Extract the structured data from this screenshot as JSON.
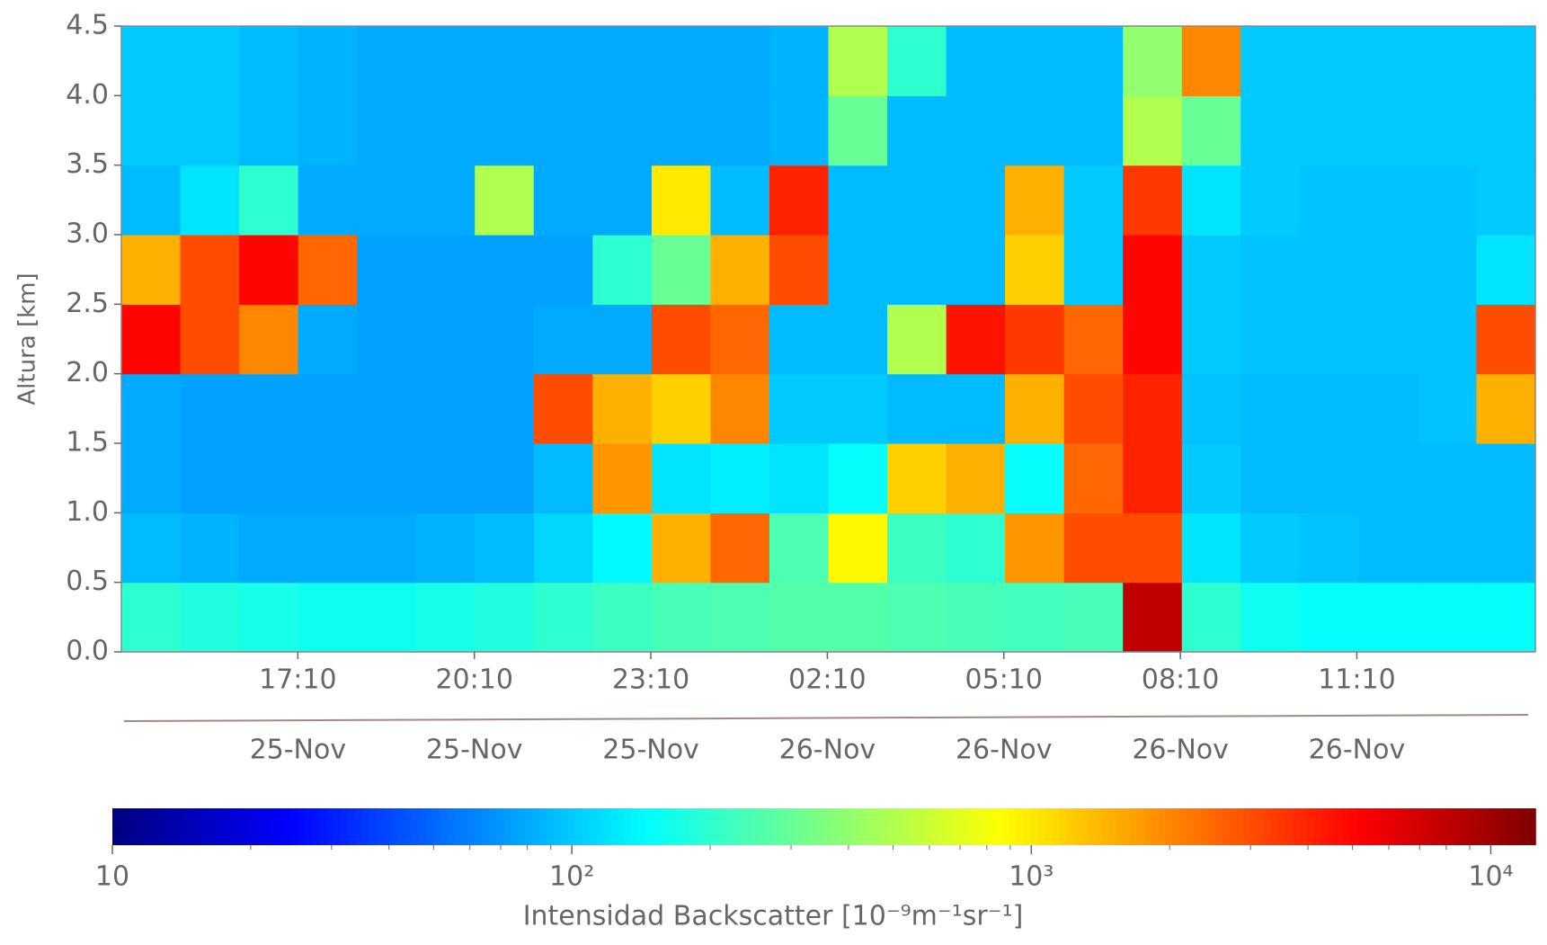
{
  "chart_data": {
    "type": "heatmap",
    "ylabel": "Altura [km]",
    "colorbar_label": "Intensidad Backscatter [10⁻⁹m⁻¹sr⁻¹]",
    "colormap": "jet",
    "log_color": true,
    "clim": [
      10,
      12500
    ],
    "cticks": [
      10,
      {
        "value": 100,
        "label": "10²"
      },
      {
        "value": 1000,
        "label": "10³"
      },
      {
        "value": 10000,
        "label": "10⁴"
      }
    ],
    "xlim": [
      14.1667,
      38.2
    ],
    "xticks": [
      {
        "value": 17.1667,
        "label": "17:10"
      },
      {
        "value": 20.1667,
        "label": "20:10"
      },
      {
        "value": 23.1667,
        "label": "23:10"
      },
      {
        "value": 26.1667,
        "label": "02:10"
      },
      {
        "value": 29.1667,
        "label": "05:10"
      },
      {
        "value": 32.1667,
        "label": "08:10"
      },
      {
        "value": 35.1667,
        "label": "11:10"
      }
    ],
    "xtick_dates": [
      "25-Nov",
      "25-Nov",
      "25-Nov",
      "26-Nov",
      "26-Nov",
      "26-Nov",
      "26-Nov"
    ],
    "ylim": [
      0,
      4.5
    ],
    "yticks": [
      {
        "value": 0,
        "label": "0.0"
      },
      0.5,
      {
        "value": 1,
        "label": "1.0"
      },
      1.5,
      {
        "value": 2,
        "label": "2.0"
      },
      2.5,
      {
        "value": 3,
        "label": "3.0"
      },
      3.5,
      {
        "value": 4,
        "label": "4.0"
      },
      4.5
    ],
    "z": [
      [
        200,
        180,
        170,
        160,
        160,
        170,
        180,
        200,
        220,
        240,
        250,
        260,
        260,
        250,
        240,
        230,
        240,
        8000,
        200,
        160,
        150,
        150,
        150,
        150
      ],
      [
        90,
        85,
        80,
        80,
        80,
        85,
        90,
        110,
        140,
        1500,
        2500,
        250,
        900,
        220,
        200,
        1800,
        3000,
        3000,
        120,
        100,
        95,
        90,
        90,
        90
      ],
      [
        80,
        75,
        75,
        75,
        75,
        75,
        75,
        90,
        1800,
        120,
        130,
        120,
        150,
        1200,
        1500,
        150,
        2500,
        4000,
        100,
        90,
        90,
        90,
        90,
        90
      ],
      [
        80,
        75,
        75,
        75,
        75,
        75,
        75,
        3000,
        1500,
        1200,
        2000,
        100,
        100,
        90,
        90,
        1500,
        3000,
        4000,
        95,
        90,
        90,
        90,
        95,
        1500
      ],
      [
        5000,
        3000,
        2000,
        80,
        75,
        75,
        75,
        80,
        80,
        3000,
        2500,
        90,
        90,
        500,
        4500,
        3500,
        2500,
        5000,
        100,
        95,
        95,
        95,
        95,
        3000
      ],
      [
        1500,
        3000,
        5000,
        2500,
        75,
        75,
        75,
        75,
        200,
        300,
        1500,
        3000,
        90,
        90,
        90,
        1200,
        100,
        5000,
        100,
        95,
        95,
        95,
        95,
        120
      ],
      [
        90,
        120,
        200,
        80,
        80,
        80,
        500,
        80,
        80,
        1000,
        90,
        4000,
        90,
        90,
        90,
        1500,
        100,
        3500,
        120,
        100,
        95,
        95,
        95,
        100
      ],
      [
        100,
        100,
        90,
        85,
        80,
        80,
        80,
        80,
        80,
        80,
        80,
        85,
        300,
        90,
        90,
        90,
        90,
        500,
        300,
        100,
        100,
        100,
        100,
        100
      ],
      [
        100,
        100,
        90,
        85,
        80,
        80,
        80,
        80,
        80,
        80,
        80,
        85,
        500,
        200,
        90,
        90,
        90,
        400,
        2000,
        100,
        100,
        100,
        100,
        100
      ]
    ]
  }
}
